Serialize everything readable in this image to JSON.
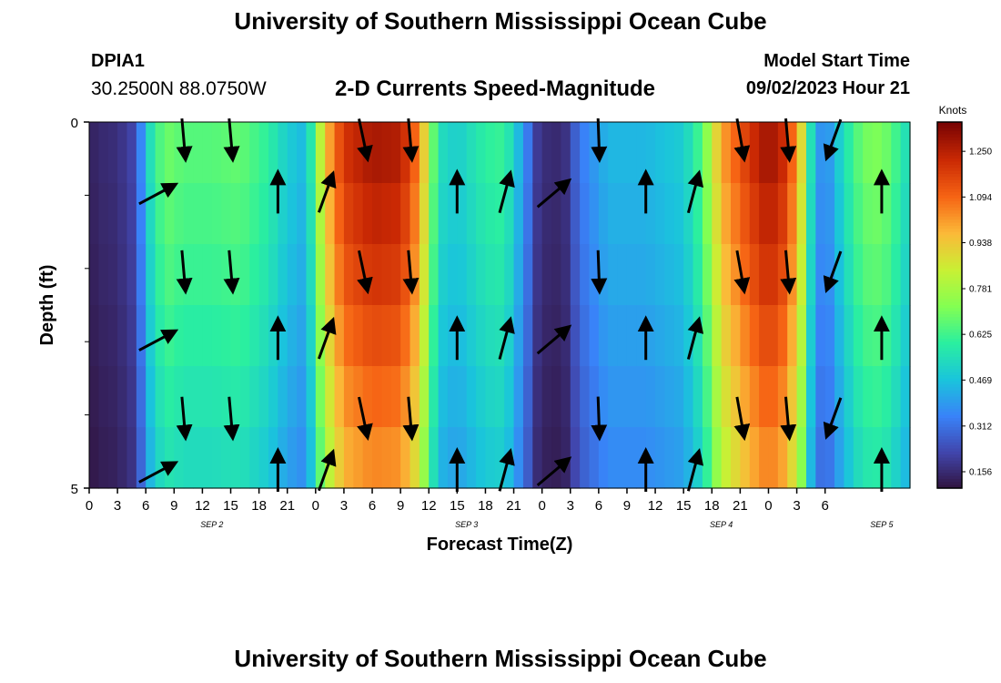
{
  "header": {
    "title": "University of Southern Mississippi Ocean Cube",
    "station_id": "DPIA1",
    "station_coords": "30.2500N  88.0750W",
    "subtitle": "2-D Currents Speed-Magnitude",
    "model_start_label": "Model Start Time",
    "model_start_value": "09/02/2023 Hour 21"
  },
  "footer": {
    "title": "University of Southern Mississippi Ocean Cube"
  },
  "chart_data": {
    "type": "heatmap",
    "title": "2-D Currents Speed-Magnitude",
    "xlabel": "Forecast Time(Z)",
    "ylabel": "Depth (ft)",
    "colorbar_label": "Knots",
    "colorbar_ticks": [
      0.156,
      0.312,
      0.469,
      0.625,
      0.781,
      0.938,
      1.094,
      1.25
    ],
    "colorbar_range": [
      0.1,
      1.35
    ],
    "ylim": [
      0,
      5
    ],
    "y_tick_labels": [
      "0",
      "5"
    ],
    "y_minor_ticks": [
      1,
      2,
      3,
      4
    ],
    "x_range_hours": [
      0,
      87
    ],
    "x_tick_labels": [
      "0",
      "3",
      "6",
      "9",
      "12",
      "15",
      "18",
      "21",
      "0",
      "3",
      "6",
      "9",
      "12",
      "15",
      "18",
      "21",
      "0",
      "3",
      "6",
      "9",
      "12",
      "15",
      "18",
      "21",
      "0",
      "3",
      "6"
    ],
    "date_labels": [
      {
        "label": "SEP 2",
        "hour": 13
      },
      {
        "label": "SEP 3",
        "hour": 40
      },
      {
        "label": "SEP 4",
        "hour": 67
      },
      {
        "label": "SEP 5",
        "hour": 84
      }
    ],
    "speed_profile": [
      {
        "hour": 0,
        "speed": 0.14
      },
      {
        "hour": 1.5,
        "speed": 0.16
      },
      {
        "hour": 3,
        "speed": 0.17
      },
      {
        "hour": 4.5,
        "speed": 0.22
      },
      {
        "hour": 5.5,
        "speed": 0.36
      },
      {
        "hour": 6.5,
        "speed": 0.55
      },
      {
        "hour": 8,
        "speed": 0.7
      },
      {
        "hour": 10,
        "speed": 0.66
      },
      {
        "hour": 13,
        "speed": 0.66
      },
      {
        "hour": 16,
        "speed": 0.68
      },
      {
        "hour": 19,
        "speed": 0.6
      },
      {
        "hour": 21,
        "speed": 0.5
      },
      {
        "hour": 23,
        "speed": 0.45
      },
      {
        "hour": 25,
        "speed": 0.95
      },
      {
        "hour": 27,
        "speed": 1.2
      },
      {
        "hour": 30,
        "speed": 1.28
      },
      {
        "hour": 33,
        "speed": 1.26
      },
      {
        "hour": 35,
        "speed": 1.05
      },
      {
        "hour": 37,
        "speed": 0.55
      },
      {
        "hour": 39,
        "speed": 0.5
      },
      {
        "hour": 42,
        "speed": 0.6
      },
      {
        "hour": 44,
        "speed": 0.62
      },
      {
        "hour": 46,
        "speed": 0.4
      },
      {
        "hour": 47.5,
        "speed": 0.2
      },
      {
        "hour": 49,
        "speed": 0.15
      },
      {
        "hour": 50.5,
        "speed": 0.18
      },
      {
        "hour": 52,
        "speed": 0.33
      },
      {
        "hour": 55,
        "speed": 0.45
      },
      {
        "hour": 59,
        "speed": 0.45
      },
      {
        "hour": 63,
        "speed": 0.5
      },
      {
        "hour": 65,
        "speed": 0.66
      },
      {
        "hour": 67,
        "speed": 1.0
      },
      {
        "hour": 70,
        "speed": 1.2
      },
      {
        "hour": 72,
        "speed": 1.3
      },
      {
        "hour": 74,
        "speed": 1.2
      },
      {
        "hour": 75.5,
        "speed": 0.9
      },
      {
        "hour": 77,
        "speed": 0.38
      },
      {
        "hour": 78.5,
        "speed": 0.4
      },
      {
        "hour": 80,
        "speed": 0.55
      },
      {
        "hour": 82,
        "speed": 0.7
      },
      {
        "hour": 84,
        "speed": 0.72
      },
      {
        "hour": 86,
        "speed": 0.6
      },
      {
        "hour": 87,
        "speed": 0.52
      }
    ],
    "depth_speed_factors": [
      1.0,
      0.97,
      0.94,
      0.9,
      0.86,
      0.82
    ],
    "vectors": {
      "depth_rows": [
        0,
        1,
        2,
        3,
        4,
        5
      ],
      "columns": [
        {
          "hour": 10,
          "rows": [
            0,
            2,
            4
          ],
          "angle": 175
        },
        {
          "hour": 15,
          "rows": [
            0,
            2,
            4
          ],
          "angle": 175
        },
        {
          "hour": 7,
          "rows": [
            1,
            3,
            5
          ],
          "angle": 62
        },
        {
          "hour": 20,
          "rows": [
            1,
            3,
            5
          ],
          "angle": 0
        },
        {
          "hour": 25,
          "rows": [
            1,
            3,
            5
          ],
          "angle": 20
        },
        {
          "hour": 29,
          "rows": [
            0,
            2,
            4
          ],
          "angle": 168
        },
        {
          "hour": 34,
          "rows": [
            0,
            2,
            4
          ],
          "angle": 175
        },
        {
          "hour": 39,
          "rows": [
            1,
            3,
            5
          ],
          "angle": 0
        },
        {
          "hour": 44,
          "rows": [
            1,
            3,
            5
          ],
          "angle": 15
        },
        {
          "hour": 49,
          "rows": [
            1,
            3,
            5
          ],
          "angle": 50
        },
        {
          "hour": 54,
          "rows": [
            0,
            2,
            4
          ],
          "angle": 178
        },
        {
          "hour": 59,
          "rows": [
            1,
            3,
            5
          ],
          "angle": 0
        },
        {
          "hour": 64,
          "rows": [
            1,
            3,
            5
          ],
          "angle": 15
        },
        {
          "hour": 69,
          "rows": [
            0,
            2,
            4
          ],
          "angle": 170
        },
        {
          "hour": 74,
          "rows": [
            0,
            2,
            4
          ],
          "angle": 175
        },
        {
          "hour": 79,
          "rows": [
            0,
            2,
            4
          ],
          "angle": 200
        },
        {
          "hour": 84,
          "rows": [
            1,
            3,
            5
          ],
          "angle": 0
        }
      ],
      "length_knots": 0.55
    }
  }
}
